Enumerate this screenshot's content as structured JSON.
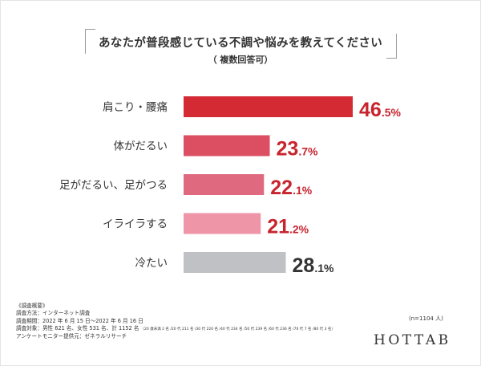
{
  "header": {
    "title": "あなたが普段感じている不調や悩みを教えてください",
    "subtitle": "（ 複数回答可）"
  },
  "chart_data": {
    "type": "bar",
    "orientation": "horizontal",
    "title": "あなたが普段感じている不調や悩みを教えてください",
    "subtitle": "（ 複数回答可）",
    "categories": [
      "肩こり・腰痛",
      "体がだるい",
      "足がだるい、足がつる",
      "イライラする",
      "冷たい"
    ],
    "values": [
      46.5,
      23.7,
      22.1,
      21.2,
      28.1
    ],
    "value_labels": [
      {
        "int": "46",
        "dec": ".5",
        "unit": "%"
      },
      {
        "int": "23",
        "dec": ".7",
        "unit": "%"
      },
      {
        "int": "22",
        "dec": ".1",
        "unit": "%"
      },
      {
        "int": "21",
        "dec": ".2",
        "unit": "%"
      },
      {
        "int": "28",
        "dec": ".1",
        "unit": "%"
      }
    ],
    "colors": [
      "#d42a34",
      "#dc4f63",
      "#df6a80",
      "#ee95a8",
      "#bfc1c4"
    ],
    "label_colors": [
      "#c8242e",
      "#c8242e",
      "#c8242e",
      "#c8242e",
      "#333333"
    ],
    "xlim": [
      0,
      46.5
    ],
    "grid": false,
    "legend": "none"
  },
  "notes": {
    "heading": "《調査概要》",
    "method": "調査方法：インターネット調査",
    "period": "調査期間：2022 年 6 月 15 日〜2022 年 6 月 16 日",
    "target_main": "調査対象：男性 621 名、女性 531 名、計 1152 名",
    "target_breakdown": "（20 歳未満 2 名 /20 代 211 名 /30 代 220 名 /40 代 234 名 /50 代 239 名 /60 代 236 名 /70 代 7 名 /80 代 3 名）",
    "provider": "アンケートモニター提供元：ゼネラルリサーチ"
  },
  "sample_size": "(n=1104 人)",
  "brand": {
    "logo_text": "HOTTAB"
  }
}
